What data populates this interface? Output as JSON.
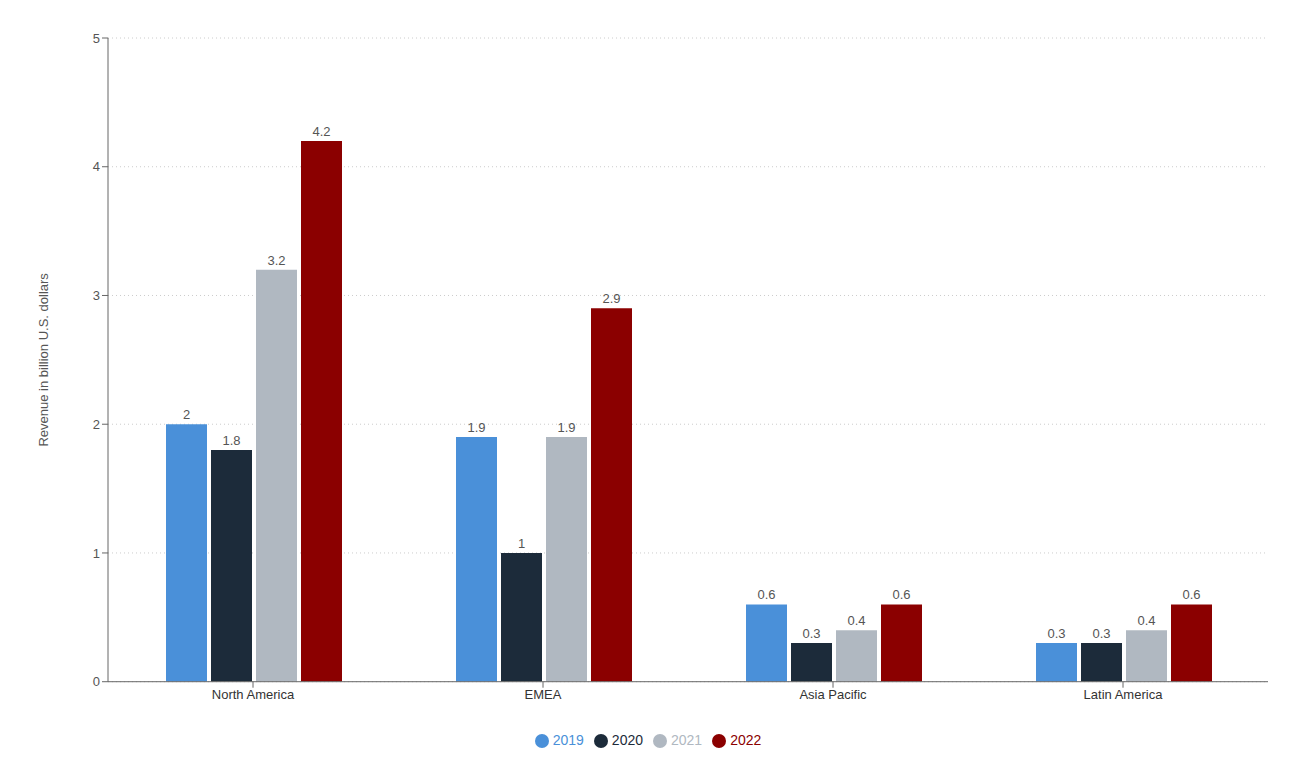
{
  "chart_data": {
    "type": "bar",
    "categories": [
      "North America",
      "EMEA",
      "Asia Pacific",
      "Latin America"
    ],
    "series": [
      {
        "name": "2019",
        "color": "#4a90d9",
        "values": [
          2.0,
          1.9,
          0.6,
          0.3
        ]
      },
      {
        "name": "2020",
        "color": "#1c2b3a",
        "values": [
          1.8,
          1.0,
          0.3,
          0.3
        ]
      },
      {
        "name": "2021",
        "color": "#b0b8c1",
        "values": [
          3.2,
          1.9,
          0.4,
          0.4
        ]
      },
      {
        "name": "2022",
        "color": "#8b0000",
        "values": [
          4.2,
          2.9,
          0.6,
          0.6
        ]
      }
    ],
    "ylabel": "Revenue in billion U.S. dollars",
    "ylim": [
      0,
      5
    ],
    "yticks": [
      0,
      1,
      2,
      3,
      4,
      5
    ],
    "grid": true,
    "legend": "bottom",
    "data_labels": true
  }
}
